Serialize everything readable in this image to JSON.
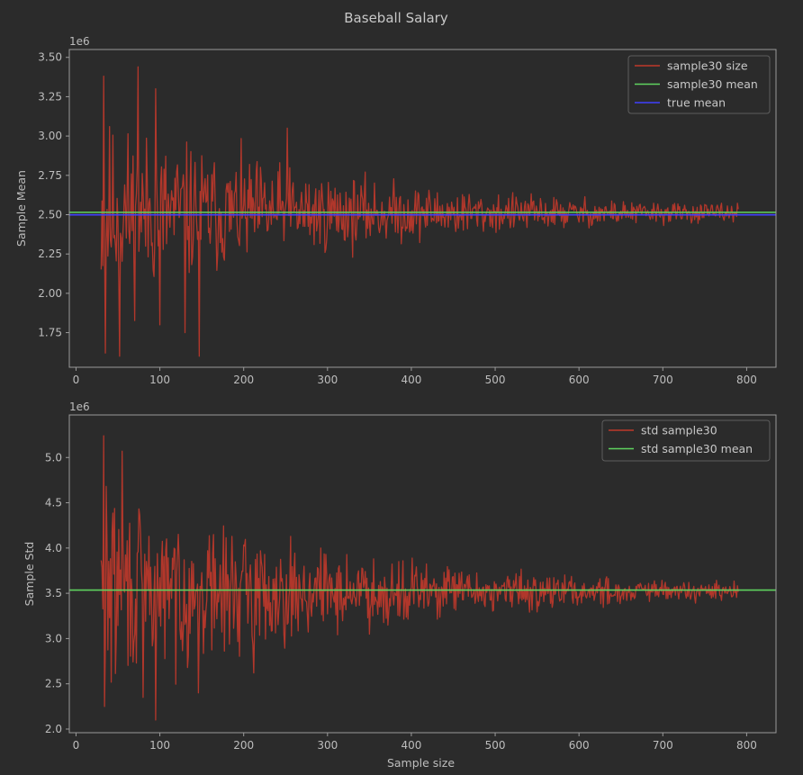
{
  "figure": {
    "title": "Baseball Salary",
    "background": "#2b2b2b",
    "axes_color": "#9a9a9a"
  },
  "chart_data": [
    {
      "type": "line",
      "title": "",
      "xlabel": "",
      "ylabel": "Sample Mean",
      "y_offset_label": "1e6",
      "xlim": [
        -8,
        835
      ],
      "ylim": [
        1.53,
        3.55
      ],
      "x_ticks": [
        0,
        100,
        200,
        300,
        400,
        500,
        600,
        700,
        800
      ],
      "x_tick_labels": [
        "0",
        "100",
        "200",
        "300",
        "400",
        "500",
        "600",
        "700",
        "800"
      ],
      "y_ticks": [
        1.75,
        2.0,
        2.25,
        2.5,
        2.75,
        3.0,
        3.25,
        3.5
      ],
      "y_tick_labels": [
        "1.75",
        "2.00",
        "2.25",
        "2.50",
        "2.75",
        "3.00",
        "3.25",
        "3.50"
      ],
      "grid": false,
      "legend_position": "top-right",
      "series": [
        {
          "name": "sample30 size",
          "color": "#c0392b",
          "kind": "noisy_line",
          "x_start": 30,
          "x_end": 790,
          "step": 1,
          "center": 2.51,
          "envelope_at_start": 0.85,
          "envelope_decay": 0.0032,
          "envelope_floor": 0.02,
          "seed": 11,
          "peaks": [
            {
              "x": 33,
              "y": 3.38
            },
            {
              "x": 74,
              "y": 3.44
            },
            {
              "x": 95,
              "y": 3.3
            },
            {
              "x": 252,
              "y": 3.05
            },
            {
              "x": 35,
              "y": 1.62
            },
            {
              "x": 52,
              "y": 1.6
            },
            {
              "x": 147,
              "y": 1.6
            },
            {
              "x": 130,
              "y": 1.75
            },
            {
              "x": 100,
              "y": 1.8
            }
          ]
        },
        {
          "name": "sample30 mean",
          "color": "#5fd35f",
          "kind": "hline",
          "y": 2.515
        },
        {
          "name": "true mean",
          "color": "#4040ff",
          "kind": "hline",
          "y": 2.499
        }
      ]
    },
    {
      "type": "line",
      "title": "",
      "xlabel": "Sample size",
      "ylabel": "Sample Std",
      "y_offset_label": "1e6",
      "xlim": [
        -8,
        835
      ],
      "ylim": [
        1.96,
        5.47
      ],
      "x_ticks": [
        0,
        100,
        200,
        300,
        400,
        500,
        600,
        700,
        800
      ],
      "x_tick_labels": [
        "0",
        "100",
        "200",
        "300",
        "400",
        "500",
        "600",
        "700",
        "800"
      ],
      "y_ticks": [
        2.0,
        2.5,
        3.0,
        3.5,
        4.0,
        4.5,
        5.0
      ],
      "y_tick_labels": [
        "2.0",
        "2.5",
        "3.0",
        "3.5",
        "4.0",
        "4.5",
        "5.0"
      ],
      "grid": false,
      "legend_position": "top-right",
      "series": [
        {
          "name": "std sample30",
          "color": "#c0392b",
          "kind": "noisy_line",
          "x_start": 30,
          "x_end": 790,
          "step": 1,
          "center": 3.52,
          "envelope_at_start": 1.55,
          "envelope_decay": 0.0032,
          "envelope_floor": 0.04,
          "seed": 29,
          "peaks": [
            {
              "x": 33,
              "y": 5.24
            },
            {
              "x": 55,
              "y": 5.07
            },
            {
              "x": 36,
              "y": 4.68
            },
            {
              "x": 34,
              "y": 2.25
            },
            {
              "x": 95,
              "y": 2.1
            },
            {
              "x": 80,
              "y": 2.35
            },
            {
              "x": 146,
              "y": 2.4
            },
            {
              "x": 212,
              "y": 2.62
            }
          ]
        },
        {
          "name": "std sample30 mean",
          "color": "#5fd35f",
          "kind": "hline",
          "y": 3.535
        }
      ]
    }
  ]
}
